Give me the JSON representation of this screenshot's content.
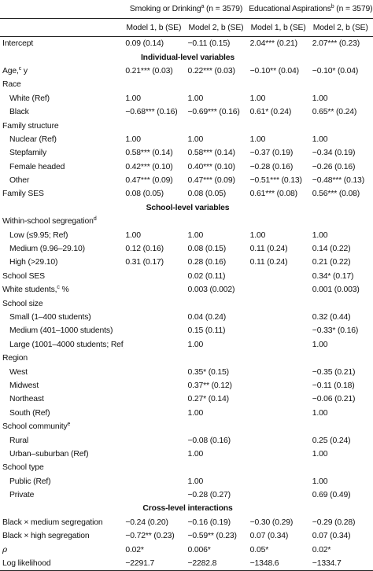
{
  "header": {
    "group_a": {
      "label": "Smoking or Drinking",
      "sup": "a",
      "n": " (n = 3579)"
    },
    "group_b": {
      "label": "Educational Aspirations",
      "sup": "b",
      "n": " (n = 3579)"
    },
    "col_m1": "Model 1, b (SE)",
    "col_m2": "Model 2, b (SE)",
    "col_m3": "Model 1, b (SE)",
    "col_m4": "Model 2, b (SE)"
  },
  "rows": [
    {
      "type": "row",
      "label": "Intercept",
      "indent": 0,
      "v": [
        "0.09 (0.14)",
        "−0.11 (0.15)",
        "2.04*** (0.21)",
        "2.07*** (0.23)"
      ]
    },
    {
      "type": "section",
      "label": "Individual-level variables"
    },
    {
      "type": "row",
      "label": "Age,",
      "sup": "c",
      "suffix": " y",
      "indent": 0,
      "v": [
        "0.21*** (0.03)",
        "0.22*** (0.03)",
        "−0.10** (0.04)",
        "−0.10* (0.04)"
      ]
    },
    {
      "type": "row",
      "label": "Race",
      "indent": 0,
      "v": [
        "",
        "",
        "",
        ""
      ]
    },
    {
      "type": "row",
      "label": "White (Ref)",
      "indent": 1,
      "v": [
        "1.00",
        "1.00",
        "1.00",
        "1.00"
      ]
    },
    {
      "type": "row",
      "label": "Black",
      "indent": 1,
      "v": [
        "−0.68*** (0.16)",
        "−0.69*** (0.16)",
        "0.61* (0.24)",
        "0.65** (0.24)"
      ]
    },
    {
      "type": "row",
      "label": "Family structure",
      "indent": 0,
      "v": [
        "",
        "",
        "",
        ""
      ]
    },
    {
      "type": "row",
      "label": "Nuclear (Ref)",
      "indent": 1,
      "v": [
        "1.00",
        "1.00",
        "1.00",
        "1.00"
      ]
    },
    {
      "type": "row",
      "label": "Stepfamily",
      "indent": 1,
      "v": [
        "0.58*** (0.14)",
        "0.58*** (0.14)",
        "−0.37 (0.19)",
        "−0.34 (0.19)"
      ]
    },
    {
      "type": "row",
      "label": "Female headed",
      "indent": 1,
      "v": [
        "0.42*** (0.10)",
        "0.40*** (0.10)",
        "−0.28 (0.16)",
        "−0.26 (0.16)"
      ]
    },
    {
      "type": "row",
      "label": "Other",
      "indent": 1,
      "v": [
        "0.47*** (0.09)",
        "0.47*** (0.09)",
        "−0.51*** (0.13)",
        "−0.48*** (0.13)"
      ]
    },
    {
      "type": "row",
      "label": "Family SES",
      "indent": 0,
      "v": [
        "0.08 (0.05)",
        "0.08 (0.05)",
        "0.61*** (0.08)",
        "0.56*** (0.08)"
      ]
    },
    {
      "type": "section",
      "label": "School-level variables"
    },
    {
      "type": "row",
      "label": "Within-school segregation",
      "sup": "d",
      "indent": 0,
      "v": [
        "",
        "",
        "",
        ""
      ]
    },
    {
      "type": "row",
      "label": "Low (≤9.95; Ref)",
      "indent": 1,
      "v": [
        "1.00",
        "1.00",
        "1.00",
        "1.00"
      ]
    },
    {
      "type": "row",
      "label": "Medium (9.96–29.10)",
      "indent": 1,
      "v": [
        "0.12 (0.16)",
        "0.08 (0.15)",
        "0.11 (0.24)",
        "0.14 (0.22)"
      ]
    },
    {
      "type": "row",
      "label": "High (>29.10)",
      "indent": 1,
      "v": [
        "0.31 (0.17)",
        "0.28 (0.16)",
        "0.11 (0.24)",
        "0.21 (0.22)"
      ]
    },
    {
      "type": "row",
      "label": "School SES",
      "indent": 0,
      "v": [
        "",
        "0.02 (0.11)",
        "",
        "0.34* (0.17)"
      ]
    },
    {
      "type": "row",
      "label": "White students,",
      "sup": "c",
      "suffix": " %",
      "indent": 0,
      "v": [
        "",
        "0.003 (0.002)",
        "",
        "0.001 (0.003)"
      ]
    },
    {
      "type": "row",
      "label": "School size",
      "indent": 0,
      "v": [
        "",
        "",
        "",
        ""
      ]
    },
    {
      "type": "row",
      "label": "Small (1–400 students)",
      "indent": 1,
      "v": [
        "",
        "0.04 (0.24)",
        "",
        "0.32 (0.44)"
      ]
    },
    {
      "type": "row",
      "label": "Medium (401–1000 students)",
      "indent": 1,
      "v": [
        "",
        "0.15 (0.11)",
        "",
        "−0.33* (0.16)"
      ]
    },
    {
      "type": "row",
      "label": "Large (1001–4000 students; Ref)",
      "indent": 1,
      "v": [
        "",
        "1.00",
        "",
        "1.00"
      ]
    },
    {
      "type": "row",
      "label": "Region",
      "indent": 0,
      "v": [
        "",
        "",
        "",
        ""
      ]
    },
    {
      "type": "row",
      "label": "West",
      "indent": 1,
      "v": [
        "",
        "0.35* (0.15)",
        "",
        "−0.35 (0.21)"
      ]
    },
    {
      "type": "row",
      "label": "Midwest",
      "indent": 1,
      "v": [
        "",
        "0.37** (0.12)",
        "",
        "−0.11 (0.18)"
      ]
    },
    {
      "type": "row",
      "label": "Northeast",
      "indent": 1,
      "v": [
        "",
        "0.27* (0.14)",
        "",
        "−0.06 (0.21)"
      ]
    },
    {
      "type": "row",
      "label": "South (Ref)",
      "indent": 1,
      "v": [
        "",
        "1.00",
        "",
        "1.00"
      ]
    },
    {
      "type": "row",
      "label": "School community",
      "sup": "e",
      "indent": 0,
      "v": [
        "",
        "",
        "",
        ""
      ]
    },
    {
      "type": "row",
      "label": "Rural",
      "indent": 1,
      "v": [
        "",
        "−0.08 (0.16)",
        "",
        "0.25 (0.24)"
      ]
    },
    {
      "type": "row",
      "label": "Urban–suburban (Ref)",
      "indent": 1,
      "v": [
        "",
        "1.00",
        "",
        "1.00"
      ]
    },
    {
      "type": "row",
      "label": "School type",
      "indent": 0,
      "v": [
        "",
        "",
        "",
        ""
      ]
    },
    {
      "type": "row",
      "label": "Public (Ref)",
      "indent": 1,
      "v": [
        "",
        "1.00",
        "",
        "1.00"
      ]
    },
    {
      "type": "row",
      "label": "Private",
      "indent": 1,
      "v": [
        "",
        "−0.28 (0.27)",
        "",
        "0.69 (0.49)"
      ]
    },
    {
      "type": "section",
      "label": "Cross-level interactions"
    },
    {
      "type": "row",
      "label": "Black × medium segregation",
      "indent": 0,
      "v": [
        "−0.24 (0.20)",
        "−0.16 (0.19)",
        "−0.30 (0.29)",
        "−0.29 (0.28)"
      ]
    },
    {
      "type": "row",
      "label": "Black × high segregation",
      "indent": 0,
      "v": [
        "−0.72** (0.23)",
        "−0.59** (0.23)",
        "0.07 (0.34)",
        "0.07 (0.34)"
      ]
    },
    {
      "type": "row",
      "label": "ρ",
      "rho": true,
      "indent": 0,
      "v": [
        "0.02*",
        "0.006*",
        "0.05*",
        "0.02*"
      ]
    },
    {
      "type": "row",
      "label": "Log likelihood",
      "indent": 0,
      "v": [
        "−2291.7",
        "−2282.8",
        "−1348.6",
        "−1334.7"
      ]
    }
  ]
}
